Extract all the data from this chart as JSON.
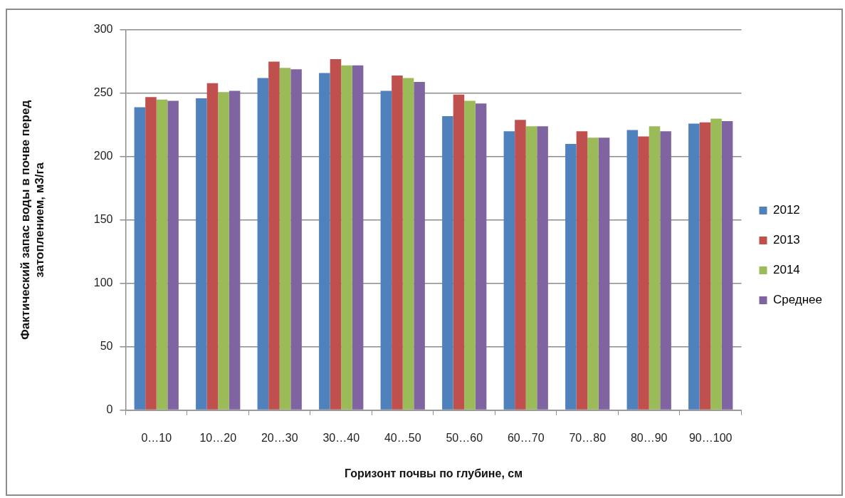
{
  "chart_data": {
    "type": "bar",
    "xlabel": "Горизонт почвы по глубине, см",
    "ylabel": "Фактический запас воды в почве перед затоплением, м3/га",
    "categories": [
      "0…10",
      "10…20",
      "20…30",
      "30…40",
      "40…50",
      "50…60",
      "60…70",
      "70…80",
      "80…90",
      "90…100"
    ],
    "series": [
      {
        "name": "2012",
        "color": "#4f81bd",
        "values": [
          239,
          246,
          262,
          266,
          252,
          232,
          220,
          210,
          221,
          226
        ]
      },
      {
        "name": "2013",
        "color": "#c0504d",
        "values": [
          247,
          258,
          275,
          277,
          264,
          249,
          229,
          220,
          216,
          227
        ]
      },
      {
        "name": "2014",
        "color": "#9bbb59",
        "values": [
          245,
          251,
          270,
          272,
          262,
          244,
          224,
          215,
          224,
          230
        ]
      },
      {
        "name": "Среднее",
        "color": "#8064a2",
        "values": [
          244,
          252,
          269,
          272,
          259,
          242,
          224,
          215,
          220,
          228
        ]
      }
    ],
    "ylim": [
      0,
      300
    ],
    "yticks": [
      0,
      50,
      100,
      150,
      200,
      250,
      300
    ],
    "grid": "y",
    "legend": "right"
  }
}
